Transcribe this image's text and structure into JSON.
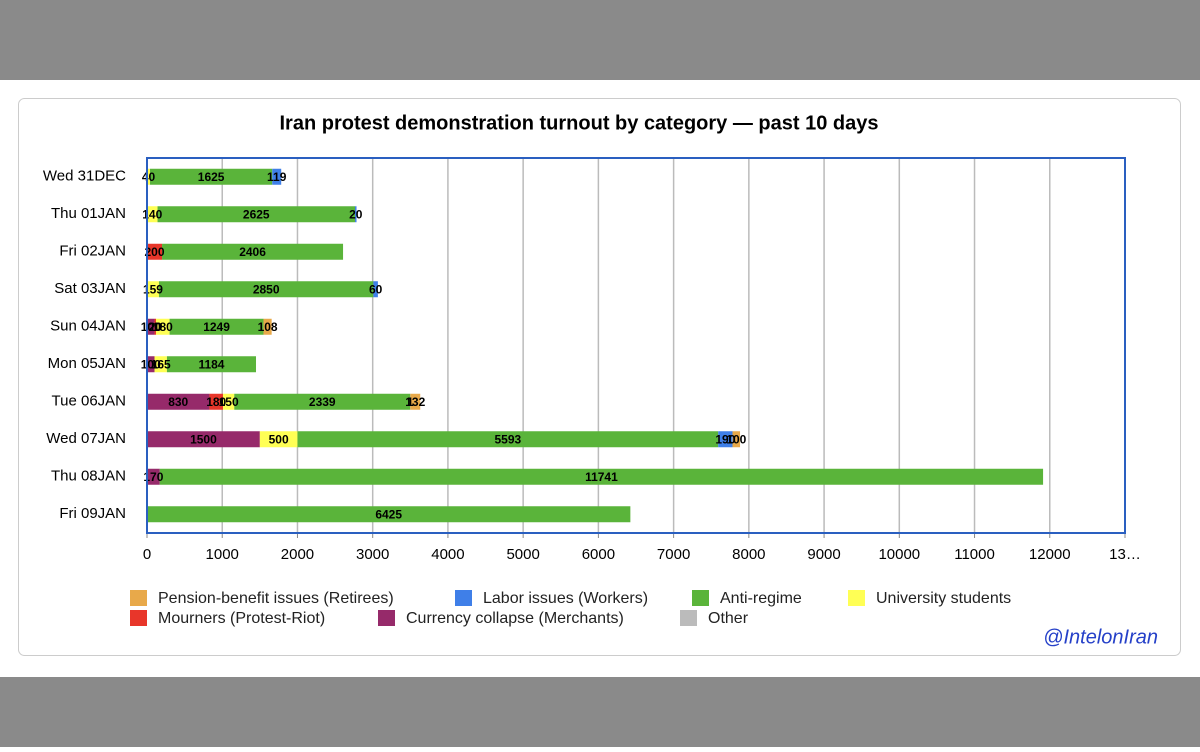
{
  "chart_data": {
    "type": "bar",
    "orientation": "horizontal",
    "stacked": true,
    "title": "Iran protest demonstration turnout by category — past 10 days",
    "watermark": "@IntelonIran",
    "categories": [
      "Wed 31DEC",
      "Thu 01JAN",
      "Fri 02JAN",
      "Sat 03JAN",
      "Sun 04JAN",
      "Mon 05JAN",
      "Tue 06JAN",
      "Wed 07JAN",
      "Thu 08JAN",
      "Fri 09JAN"
    ],
    "series": [
      {
        "name": "Pension-benefit issues (Retirees)",
        "color": "#e8a94a",
        "values": [
          0,
          0,
          0,
          0,
          108,
          0,
          132,
          100,
          0,
          0
        ]
      },
      {
        "name": "Labor issues (Workers)",
        "color": "#3f7fe8",
        "values": [
          119,
          20,
          0,
          60,
          0,
          0,
          1,
          190,
          0,
          0
        ]
      },
      {
        "name": "Anti-regime",
        "color": "#5ab43a",
        "values": [
          1625,
          2625,
          2406,
          2850,
          1249,
          1184,
          2339,
          5593,
          11741,
          6425
        ]
      },
      {
        "name": "University students",
        "color": "#ffff55",
        "values": [
          40,
          140,
          0,
          159,
          180,
          165,
          150,
          500,
          0,
          0
        ]
      },
      {
        "name": "Mourners (Protest-Riot)",
        "color": "#e8362a",
        "values": [
          0,
          0,
          200,
          0,
          20,
          0,
          180,
          0,
          0,
          0
        ]
      },
      {
        "name": "Currency collapse (Merchants)",
        "color": "#962a6a",
        "values": [
          0,
          0,
          0,
          0,
          100,
          100,
          830,
          1500,
          170,
          0
        ]
      },
      {
        "name": "Other",
        "color": "#bbbbbb",
        "values": [
          0,
          0,
          0,
          0,
          0,
          0,
          0,
          0,
          0,
          0
        ]
      }
    ],
    "xlim": [
      0,
      13000
    ],
    "xticks": [
      0,
      1000,
      2000,
      3000,
      4000,
      5000,
      6000,
      7000,
      8000,
      9000,
      10000,
      11000,
      12000,
      {
        "value": 13000,
        "label": "13…"
      }
    ],
    "grid": true,
    "legend": "bottom"
  }
}
